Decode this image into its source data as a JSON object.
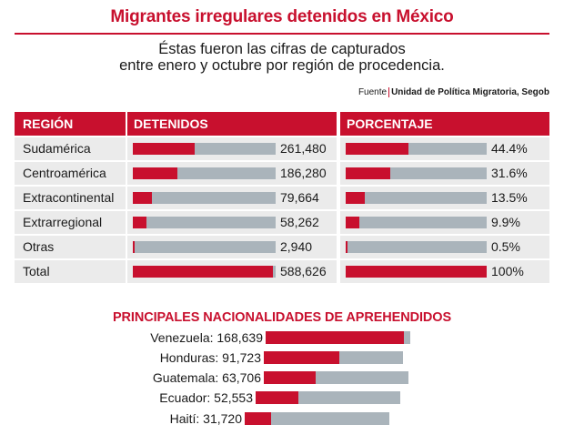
{
  "header": {
    "title": "Migrantes irregulares detenidos en México",
    "subtitle_line1": "Éstas fueron las cifras de capturados",
    "subtitle_line2": "entre enero y octubre por región de procedencia.",
    "source_label": "Fuente",
    "source_value": "Unidad de Política Migratoria, Segob"
  },
  "table": {
    "headers": {
      "region": "REGIÓN",
      "detenidos": "DETENIDOS",
      "porcentaje": "PORCENTAJE"
    },
    "rows": [
      {
        "region": "Sudamérica",
        "detenidos_label": "261,480",
        "porcentaje_label": "44.4%"
      },
      {
        "region": "Centroamérica",
        "detenidos_label": "186,280",
        "porcentaje_label": "31.6%"
      },
      {
        "region": "Extracontinental",
        "detenidos_label": "79,664",
        "porcentaje_label": "13.5%"
      },
      {
        "region": "Extrarregional",
        "detenidos_label": "58,262",
        "porcentaje_label": "9.9%"
      },
      {
        "region": "Otras",
        "detenidos_label": "2,940",
        "porcentaje_label": "0.5%"
      },
      {
        "region": "Total",
        "detenidos_label": "588,626",
        "porcentaje_label": "100%"
      }
    ]
  },
  "nationalities": {
    "title": "PRINCIPALES NACIONALIDADES DE APREHENDIDOS",
    "items": [
      {
        "label": "Venezuela: 168,639"
      },
      {
        "label": "Honduras: 91,723"
      },
      {
        "label": "Guatemala: 63,706"
      },
      {
        "label": "Ecuador: 52,553"
      },
      {
        "label": "Haití: 31,720"
      }
    ]
  },
  "colors": {
    "accent": "#c8102e",
    "track": "#aab4bb",
    "cell_bg": "#ebebeb"
  },
  "chart_data": [
    {
      "type": "table",
      "title": "Migrantes irregulares detenidos en México",
      "categories": [
        "Sudamérica",
        "Centroamérica",
        "Extracontinental",
        "Extrarregional",
        "Otras",
        "Total"
      ],
      "series": [
        {
          "name": "DETENIDOS",
          "values": [
            261480,
            186280,
            79664,
            58262,
            2940,
            588626
          ]
        },
        {
          "name": "PORCENTAJE",
          "values": [
            44.4,
            31.6,
            13.5,
            9.9,
            0.5,
            100
          ]
        }
      ],
      "ylim": [
        0,
        588626
      ],
      "pct_lim": [
        0,
        100
      ]
    },
    {
      "type": "bar",
      "title": "PRINCIPALES NACIONALIDADES DE APREHENDIDOS",
      "categories": [
        "Venezuela",
        "Honduras",
        "Guatemala",
        "Ecuador",
        "Haití"
      ],
      "values": [
        168639,
        91723,
        63706,
        52553,
        31720
      ]
    }
  ]
}
